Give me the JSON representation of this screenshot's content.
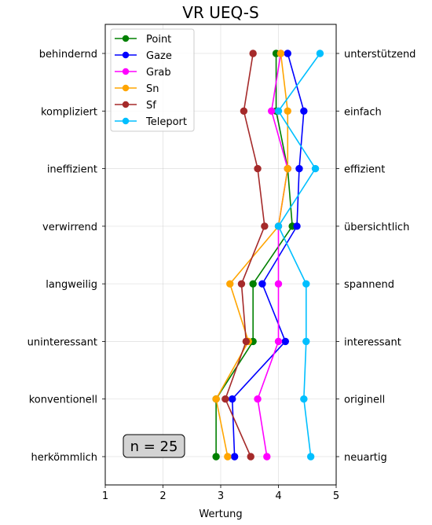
{
  "chart_data": {
    "type": "line",
    "title": "VR UEQ-S",
    "xlabel": "Wertung",
    "ylabel": "",
    "xlim": [
      1,
      5
    ],
    "xticks": [
      1,
      2,
      3,
      4,
      5
    ],
    "grid": true,
    "legend_position": "top-left",
    "left_labels": [
      "behindernd",
      "kompliziert",
      "ineffizient",
      "verwirrend",
      "langweilig",
      "uninteressant",
      "konventionell",
      "herkömmlich"
    ],
    "right_labels": [
      "unterstützend",
      "einfach",
      "effizient",
      "übersichtlich",
      "spannend",
      "interessant",
      "originell",
      "neuartig"
    ],
    "series": [
      {
        "name": "Point",
        "color": "#008000",
        "values": [
          3.96,
          3.96,
          4.16,
          4.24,
          3.56,
          3.56,
          2.92,
          2.92
        ]
      },
      {
        "name": "Gaze",
        "color": "#0000ff",
        "values": [
          4.16,
          4.44,
          4.36,
          4.32,
          3.72,
          4.12,
          3.2,
          3.24
        ]
      },
      {
        "name": "Grab",
        "color": "#ff00ff",
        "values": [
          4.04,
          3.88,
          4.16,
          4.0,
          4.0,
          4.0,
          3.64,
          3.8
        ]
      },
      {
        "name": "Sn",
        "color": "#ffa500",
        "values": [
          4.04,
          4.16,
          4.16,
          4.0,
          3.16,
          3.48,
          2.92,
          3.12
        ]
      },
      {
        "name": "Sf",
        "color": "#a52a2a",
        "values": [
          3.56,
          3.4,
          3.64,
          3.76,
          3.36,
          3.44,
          3.08,
          3.52
        ]
      },
      {
        "name": "Teleport",
        "color": "#00bfff",
        "values": [
          4.72,
          4.0,
          4.64,
          4.0,
          4.48,
          4.48,
          4.44,
          4.56
        ]
      }
    ],
    "annotation": "n = 25"
  }
}
